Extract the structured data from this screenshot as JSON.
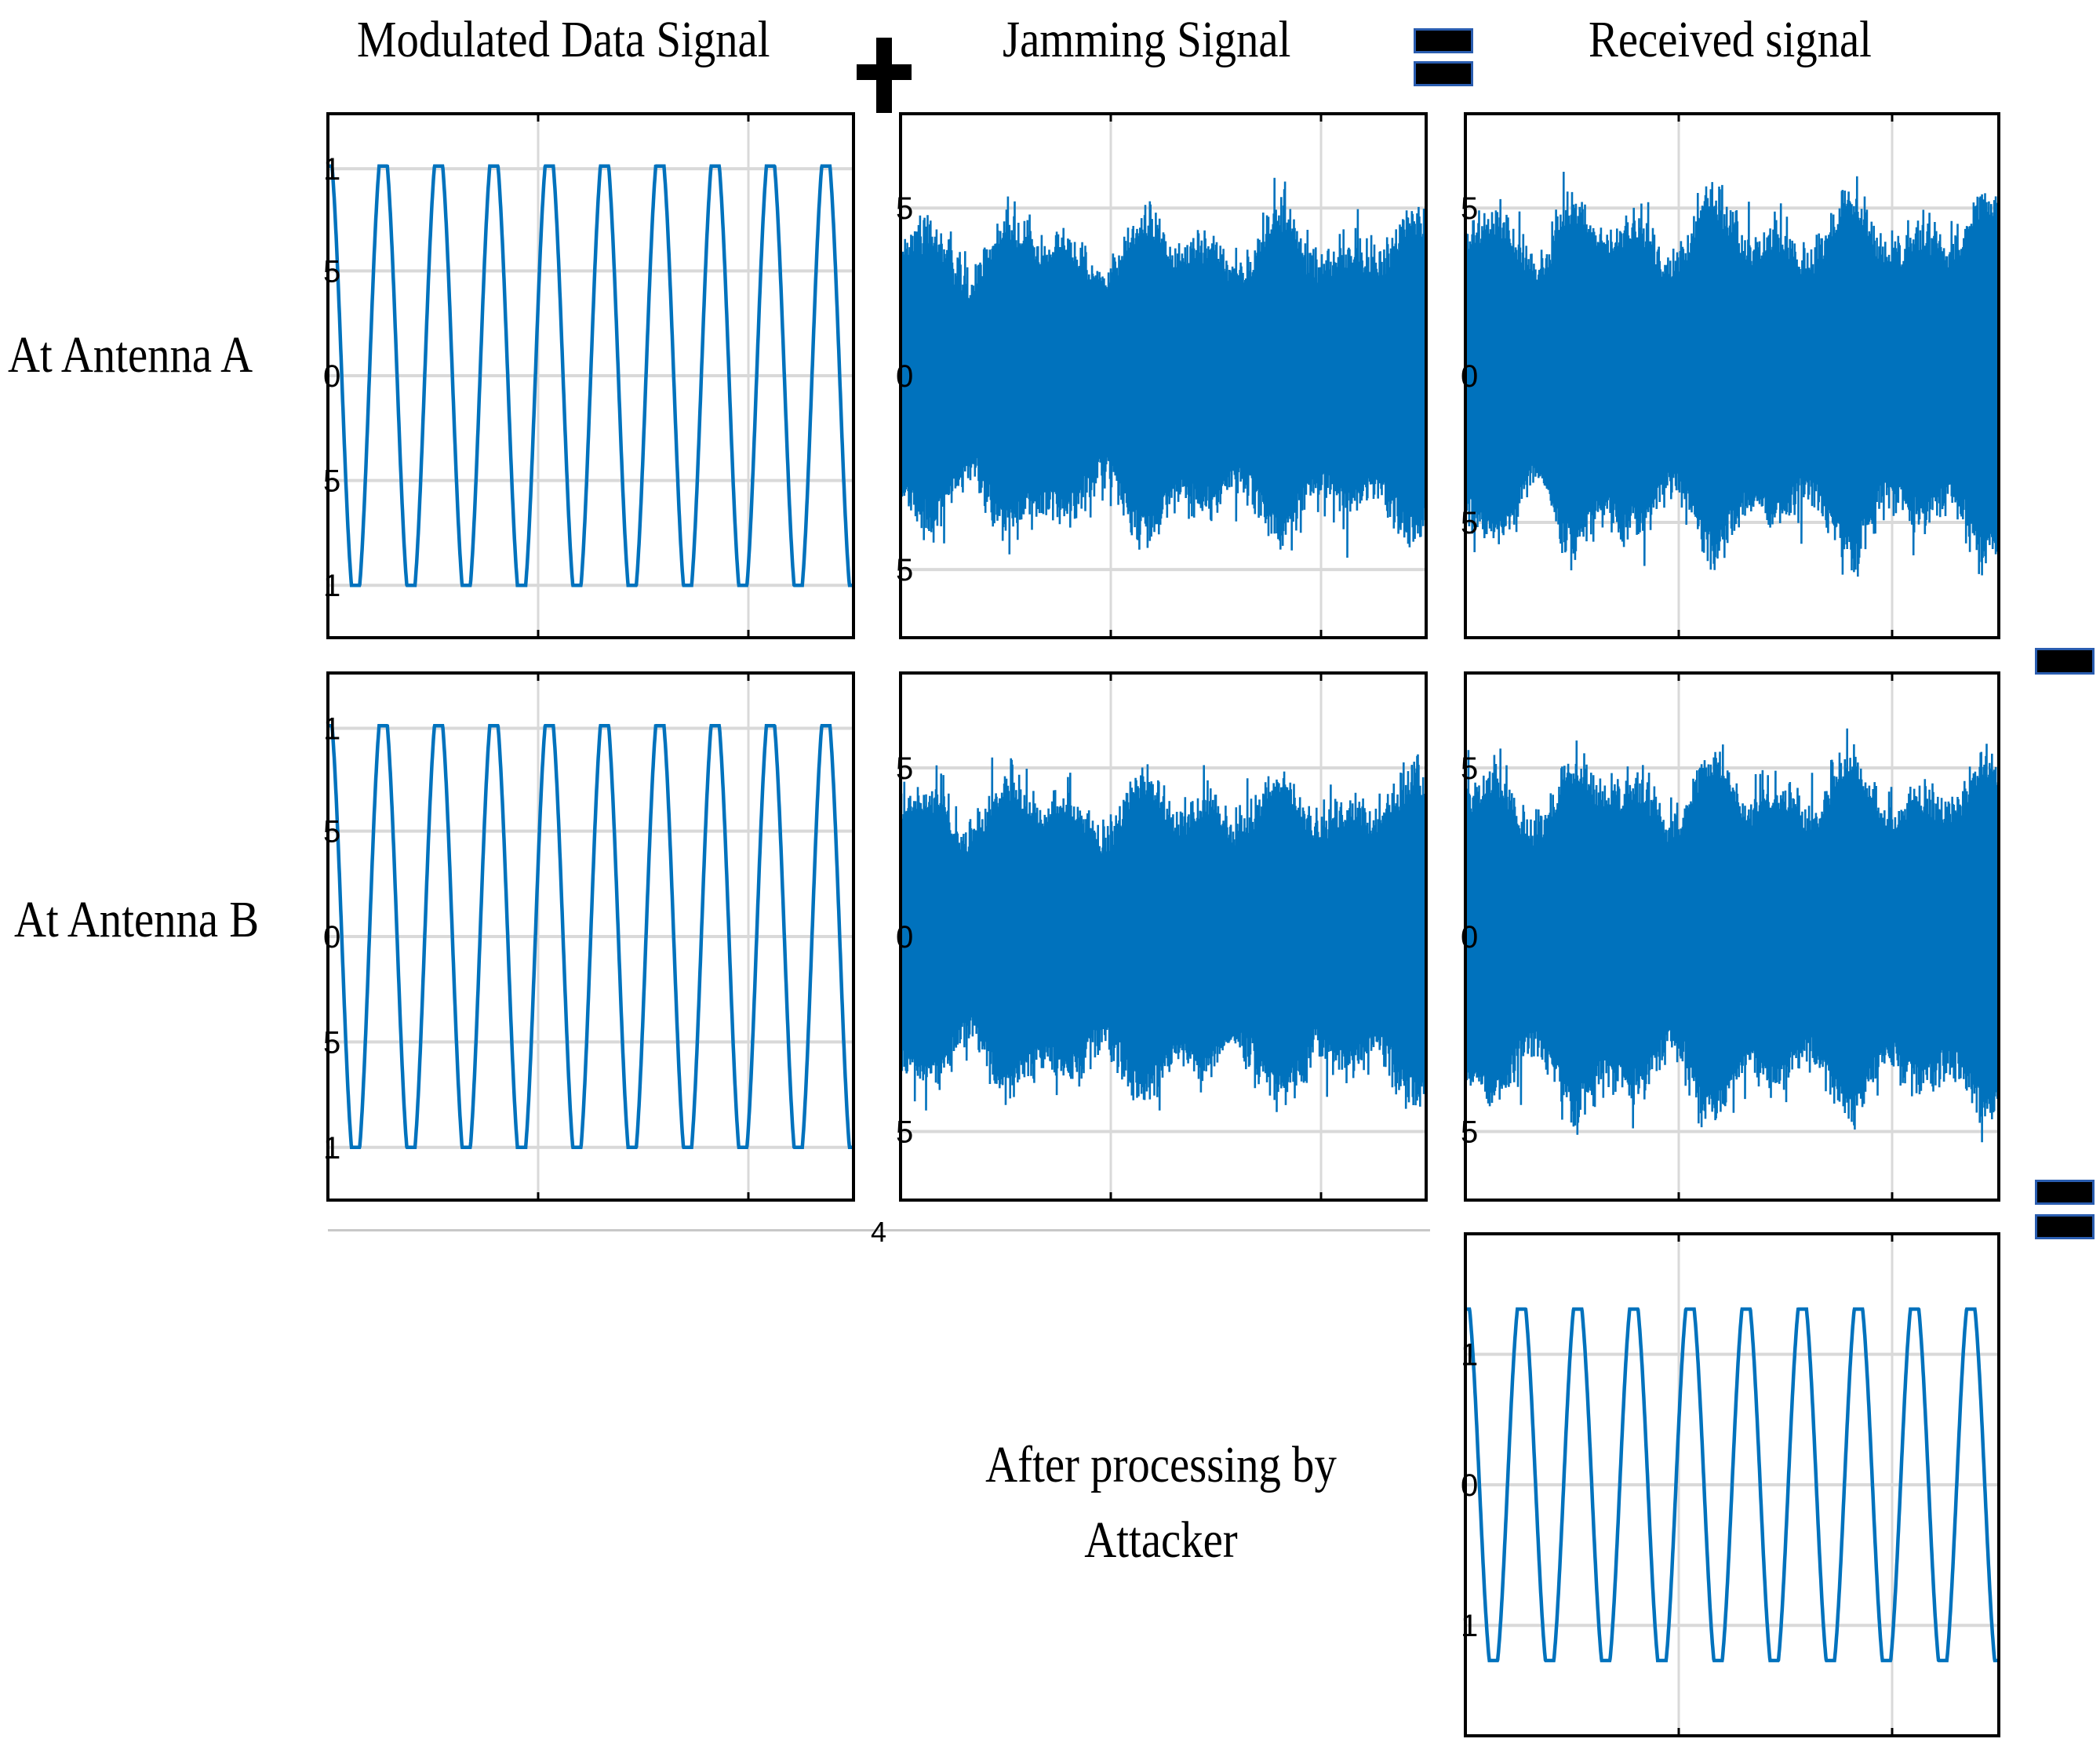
{
  "headings": {
    "col1": "Modulated Data Signal",
    "col2": "Jamming Signal",
    "col3": "Received signal"
  },
  "row_labels": {
    "a": "At Antenna A",
    "b": "At Antenna B"
  },
  "caption": {
    "line1": "After processing by",
    "line2": "Attacker"
  },
  "operators": {
    "plus": "plus-sign",
    "equals": "equals-sign",
    "minus": "minus-sign"
  },
  "colors": {
    "trace": "#0072bd",
    "grid": "#d9d9d9",
    "frame": "#000000"
  },
  "tick_labels": {
    "sine": [
      "1",
      "5",
      "0",
      "5",
      "1"
    ],
    "noise": [
      "5",
      "0",
      "5"
    ],
    "processed": [
      "1",
      "0",
      "1"
    ],
    "stray": "4"
  }
}
